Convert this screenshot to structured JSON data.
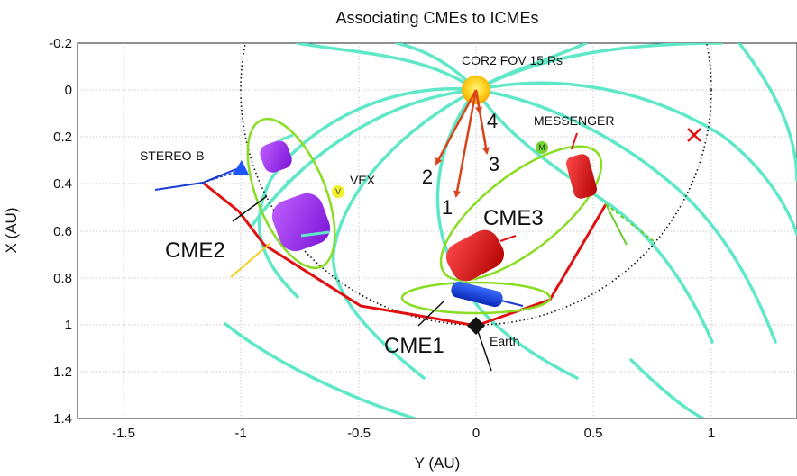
{
  "chart_data": {
    "type": "diagram",
    "title": "Associating CMEs to ICMEs",
    "xlabel": "Y (AU)",
    "ylabel": "X (AU)",
    "xticks": [
      "-1.5",
      "-1",
      "-0.5",
      "0",
      "0.5",
      "1"
    ],
    "yticks": [
      "-0.2",
      "0",
      "0.2",
      "0.4",
      "0.6",
      "0.8",
      "1",
      "1.2",
      "1.4"
    ],
    "grid": true,
    "sun_label": "COR2 FOV 15 Rs",
    "arrow_labels": [
      "1",
      "2",
      "3",
      "4"
    ],
    "spacecraft": {
      "stereo_b": "STEREO-B",
      "vex": "VEX",
      "vex_marker": "V",
      "messenger": "MESSENGER",
      "messenger_marker": "M",
      "earth": "Earth"
    },
    "cme_labels": [
      "CME1",
      "CME2",
      "CME3"
    ],
    "colors": {
      "spiral": "#5fe8c8",
      "trajectory": "#e01010",
      "cme_purple": "#9b2ef0",
      "cme_red": "#dd1111",
      "cme_blue": "#1040e0",
      "ellipse": "#88dd22",
      "sun": "#ffc31a",
      "arrow": "#d9441a"
    }
  }
}
